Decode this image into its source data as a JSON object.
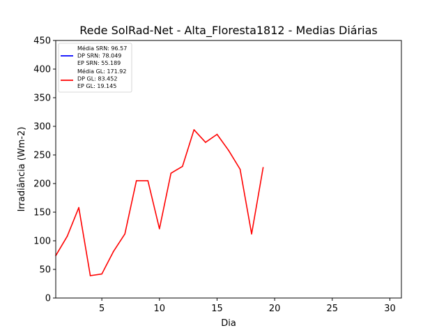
{
  "chart_data": {
    "type": "line",
    "title": "Rede SolRad-Net - Alta_Floresta1812 - Medias Diárias",
    "xlabel": "Dia",
    "ylabel": "Irradiância (Wm-2)",
    "xlim": [
      1,
      31
    ],
    "ylim": [
      0,
      450
    ],
    "xticks": [
      5,
      10,
      15,
      20,
      25,
      30
    ],
    "yticks": [
      0,
      50,
      100,
      150,
      200,
      250,
      300,
      350,
      400,
      450
    ],
    "grid": false,
    "legend_position": "top-left",
    "series": [
      {
        "name": "SRN",
        "color": "#0000ff",
        "stats": [
          "Média SRN: 96.57",
          "DP SRN: 78.049",
          "EP SRN: 55.189"
        ],
        "x": [],
        "y": []
      },
      {
        "name": "GL",
        "color": "#ff0000",
        "stats": [
          "Média GL: 171.92",
          "DP GL: 83.452",
          "EP GL: 19.145"
        ],
        "x": [
          1,
          2,
          3,
          4,
          5,
          6,
          7,
          8,
          9,
          10,
          11,
          12,
          13,
          14,
          15,
          16,
          17,
          18,
          19
        ],
        "y": [
          74,
          108,
          158,
          39,
          42,
          81,
          112,
          205,
          205,
          121,
          218,
          230,
          294,
          272,
          286,
          258,
          225,
          112,
          228
        ]
      }
    ]
  }
}
